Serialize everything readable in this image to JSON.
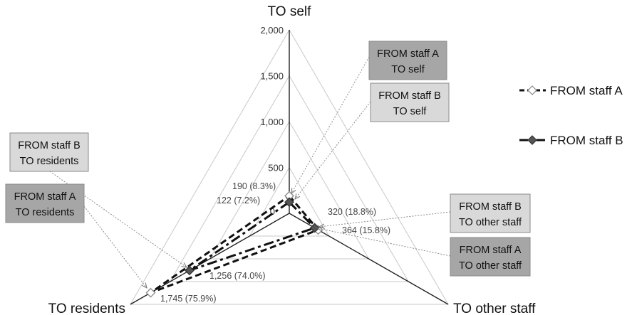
{
  "chart_data": {
    "type": "radar",
    "axes": [
      "TO self",
      "TO other staff",
      "TO residents"
    ],
    "r_ticks": [
      "0",
      "500",
      "1,000",
      "1,500",
      "2,000"
    ],
    "r_tick_values": [
      0,
      500,
      1000,
      1500,
      2000
    ],
    "r_max": 2000,
    "series": [
      {
        "name": "FROM staff A",
        "values": [
          190,
          364,
          1745
        ],
        "value_labels": [
          "190 (8.3%)",
          "364 (15.8%)",
          "1,745 (75.9%)"
        ],
        "line_style": "dashed",
        "marker": "open-diamond",
        "color": "#111111"
      },
      {
        "name": "FROM staff B",
        "values": [
          122,
          320,
          1256
        ],
        "value_labels": [
          "122 (7.2%)",
          "320 (18.8%)",
          "1,256 (74.0%)"
        ],
        "line_style": "dash-dot",
        "marker": "filled-diamond",
        "color": "#111111"
      }
    ],
    "callouts": [
      {
        "line1": "FROM staff A",
        "line2": "TO self",
        "fill": "#a6a6a6"
      },
      {
        "line1": "FROM staff B",
        "line2": "TO self",
        "fill": "#d9d9d9"
      },
      {
        "line1": "FROM staff B",
        "line2": "TO residents",
        "fill": "#d9d9d9"
      },
      {
        "line1": "FROM staff A",
        "line2": "TO residents",
        "fill": "#a6a6a6"
      },
      {
        "line1": "FROM staff B",
        "line2": "TO other staff",
        "fill": "#d9d9d9"
      },
      {
        "line1": "FROM staff A",
        "line2": "TO other staff",
        "fill": "#a6a6a6"
      }
    ],
    "legend": [
      "FROM staff A",
      "FROM staff B"
    ],
    "legend_position": "right",
    "grid": true
  }
}
